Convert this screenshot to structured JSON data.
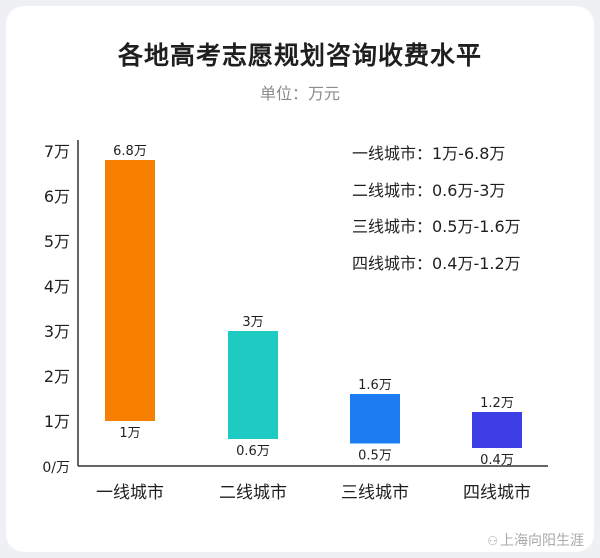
{
  "chart_data": {
    "type": "bar",
    "title": "各地高考志愿规划咨询收费水平",
    "subtitle": "单位：万元",
    "categories": [
      "一线城市",
      "二线城市",
      "三线城市",
      "四线城市"
    ],
    "series": [
      {
        "values_low": [
          1,
          0.6,
          0.5,
          0.4
        ],
        "values_high": [
          6.8,
          3,
          1.6,
          1.2
        ]
      }
    ],
    "high_labels": [
      "6.8万",
      "3万",
      "1.6万",
      "1.2万"
    ],
    "low_labels": [
      "1万",
      "0.6万",
      "0.5万",
      "0.4万"
    ],
    "bar_colors": [
      "#f77f00",
      "#1ecbc3",
      "#1d7cf2",
      "#3d3ee6"
    ],
    "yticks": [
      0,
      1,
      2,
      3,
      4,
      5,
      6,
      7
    ],
    "ytick_labels": [
      "0/万",
      "1万",
      "2万",
      "3万",
      "4万",
      "5万",
      "6万",
      "7万"
    ],
    "ylim": [
      0,
      7
    ],
    "grid": false,
    "legend_lines": [
      "一线城市：1万-6.8万",
      "二线城市：0.6万-3万",
      "三线城市：0.5万-1.6万",
      "四线城市：0.4万-1.2万"
    ]
  },
  "watermark": {
    "icon": "wechat-icon",
    "text": "上海向阳生涯"
  }
}
